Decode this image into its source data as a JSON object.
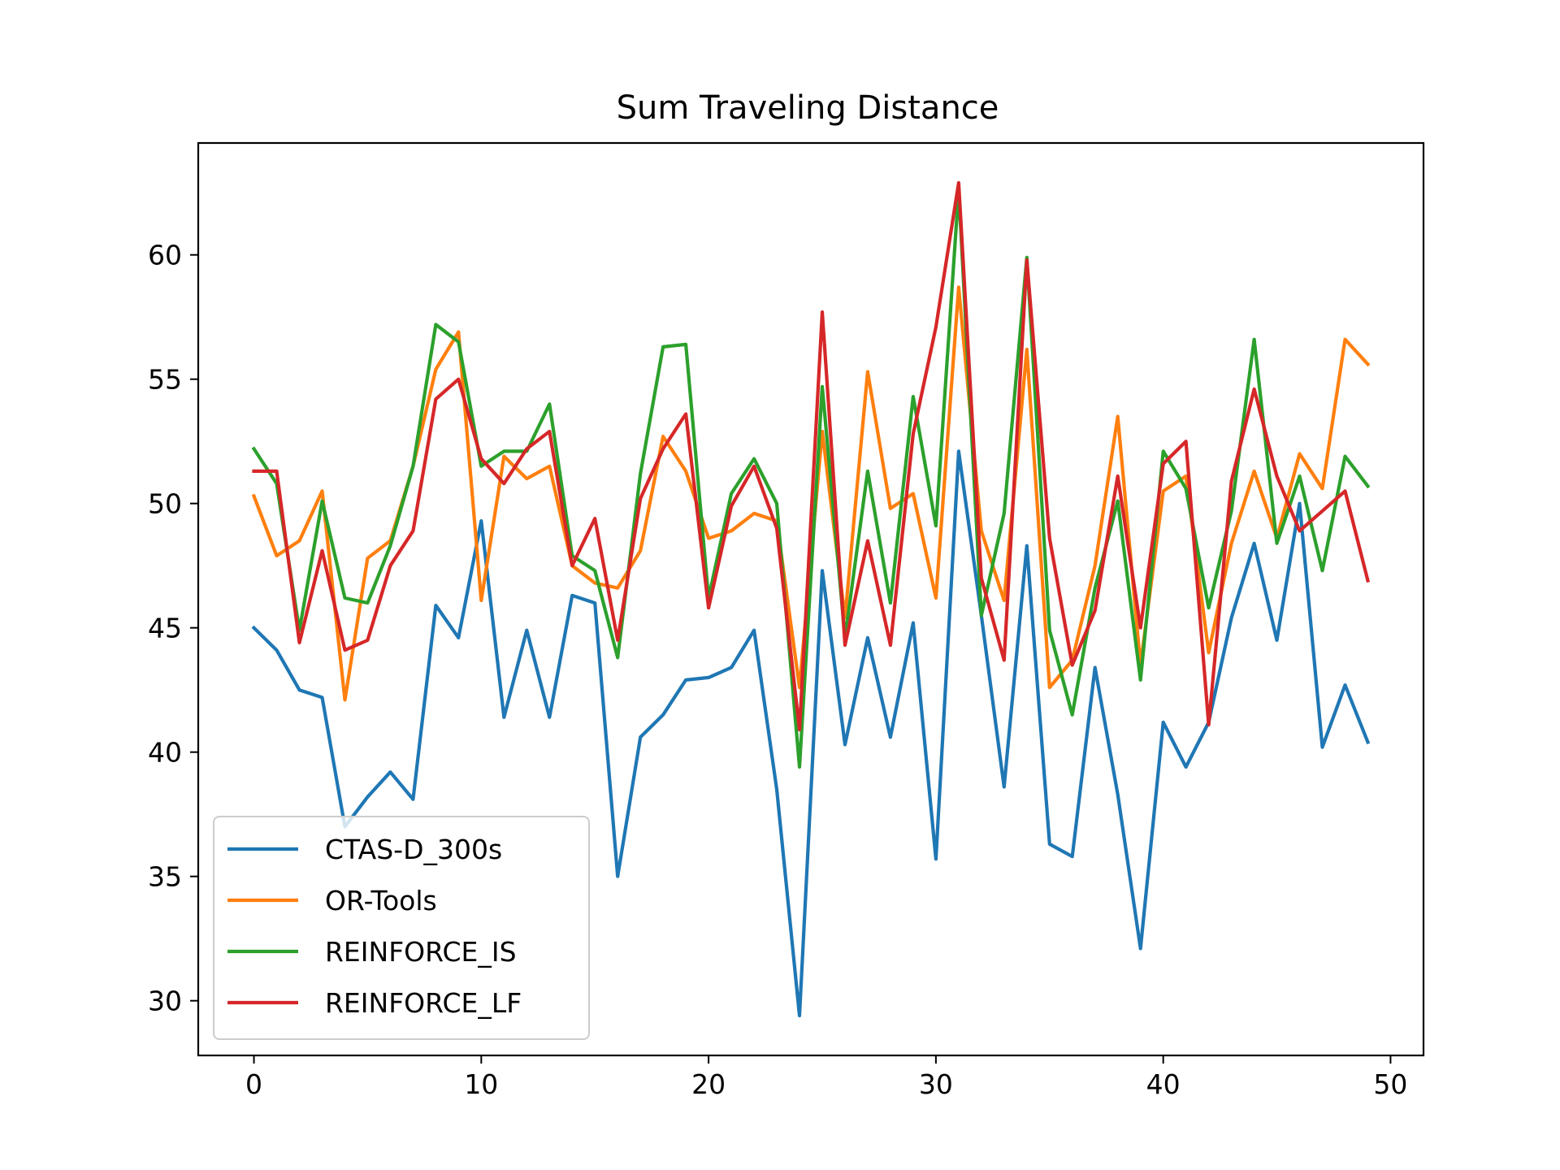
{
  "chart_data": {
    "type": "line",
    "title": "Sum Traveling Distance",
    "xlabel": "",
    "ylabel": "",
    "xlim": [
      -2.45,
      51.45
    ],
    "ylim": [
      27.8,
      64.5
    ],
    "xticks": [
      0,
      10,
      20,
      30,
      40,
      50
    ],
    "yticks": [
      30,
      35,
      40,
      45,
      50,
      55,
      60
    ],
    "legend_position": "lower-left",
    "grid": false,
    "x": [
      0,
      1,
      2,
      3,
      4,
      5,
      6,
      7,
      8,
      9,
      10,
      11,
      12,
      13,
      14,
      15,
      16,
      17,
      18,
      19,
      20,
      21,
      22,
      23,
      24,
      25,
      26,
      27,
      28,
      29,
      30,
      31,
      32,
      33,
      34,
      35,
      36,
      37,
      38,
      39,
      40,
      41,
      42,
      43,
      44,
      45,
      46,
      47,
      48,
      49
    ],
    "series": [
      {
        "name": "CTAS-D_300s",
        "color": "#1f77b4",
        "values": [
          45.0,
          44.1,
          42.5,
          42.2,
          37.0,
          38.2,
          39.2,
          38.1,
          45.9,
          44.6,
          49.3,
          41.4,
          44.9,
          41.4,
          46.3,
          46.0,
          35.0,
          40.6,
          41.5,
          42.9,
          43.0,
          43.4,
          44.9,
          38.5,
          29.4,
          47.3,
          40.3,
          44.6,
          40.6,
          45.2,
          35.7,
          52.1,
          45.5,
          38.6,
          48.3,
          36.3,
          35.8,
          43.4,
          38.3,
          32.1,
          41.2,
          39.4,
          41.2,
          45.4,
          48.4,
          44.5,
          50.0,
          40.2,
          42.7,
          40.4
        ]
      },
      {
        "name": "OR-Tools",
        "color": "#ff7f0e",
        "values": [
          50.3,
          47.9,
          48.5,
          50.5,
          42.1,
          47.8,
          48.5,
          51.5,
          55.4,
          56.9,
          46.1,
          51.9,
          51.0,
          51.5,
          47.5,
          46.8,
          46.6,
          48.1,
          52.7,
          51.3,
          48.6,
          48.9,
          49.6,
          49.3,
          42.6,
          52.9,
          45.4,
          55.3,
          49.8,
          50.4,
          46.2,
          58.7,
          48.9,
          46.1,
          56.2,
          42.6,
          43.7,
          47.5,
          53.5,
          43.5,
          50.5,
          51.1,
          44.0,
          48.4,
          51.3,
          48.6,
          52.0,
          50.6,
          56.6,
          55.6
        ]
      },
      {
        "name": "REINFORCE_IS",
        "color": "#2ca02c",
        "values": [
          52.2,
          50.8,
          44.9,
          50.1,
          46.2,
          46.0,
          48.3,
          51.5,
          57.2,
          56.5,
          51.5,
          52.1,
          52.1,
          54.0,
          47.9,
          47.3,
          43.8,
          51.2,
          56.3,
          56.4,
          46.2,
          50.4,
          51.8,
          50.0,
          39.4,
          54.7,
          44.6,
          51.3,
          46.0,
          54.3,
          49.1,
          62.6,
          45.5,
          49.6,
          59.9,
          44.9,
          41.5,
          46.6,
          50.1,
          42.9,
          52.1,
          50.6,
          45.8,
          49.7,
          56.6,
          48.4,
          51.1,
          47.3,
          51.9,
          50.7
        ]
      },
      {
        "name": "REINFORCE_LF",
        "color": "#d62728",
        "values": [
          51.3,
          51.3,
          44.4,
          48.1,
          44.1,
          44.5,
          47.5,
          48.9,
          54.2,
          55.0,
          51.8,
          50.8,
          52.2,
          52.9,
          47.5,
          49.4,
          44.5,
          50.2,
          52.2,
          53.6,
          45.8,
          49.9,
          51.5,
          49.0,
          40.9,
          57.7,
          44.3,
          48.5,
          44.3,
          52.8,
          57.1,
          62.9,
          47.0,
          43.7,
          59.8,
          48.6,
          43.5,
          45.7,
          51.1,
          45.0,
          51.6,
          52.5,
          41.1,
          50.9,
          54.6,
          51.1,
          48.9,
          49.7,
          50.5,
          46.9
        ]
      }
    ]
  }
}
